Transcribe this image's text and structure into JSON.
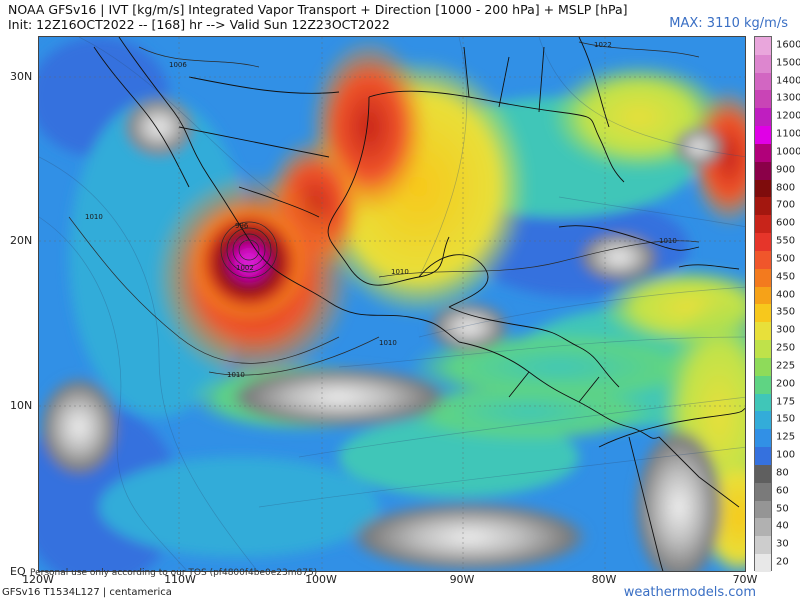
{
  "header": {
    "title": "NOAA GFSv16 | IVT [kg/m/s] Integrated Vapor Transport + Direction [1000 - 200 hPa] + MSLP [hPa]",
    "init": "Init: 12Z16OCT2022 -- [168] hr --> Valid Sun 12Z23OCT2022",
    "max": "MAX: 3110 kg/m/s"
  },
  "axes": {
    "lat_labels": [
      "30N",
      "20N",
      "10N",
      "EQ"
    ],
    "lon_labels": [
      "120W",
      "110W",
      "100W",
      "90W",
      "80W",
      "70W"
    ]
  },
  "isobars": [
    "1006",
    "1022",
    "1010",
    "1010",
    "1010",
    "1010",
    "1002",
    "1010",
    "996"
  ],
  "colorbar": {
    "levels": [
      "1600",
      "1500",
      "1400",
      "1300",
      "1200",
      "1100",
      "1000",
      "900",
      "800",
      "700",
      "600",
      "550",
      "500",
      "450",
      "400",
      "350",
      "300",
      "250",
      "225",
      "200",
      "175",
      "150",
      "125",
      "100",
      "80",
      "60",
      "50",
      "40",
      "30",
      "20"
    ],
    "colors": [
      "#e9a6dc",
      "#dd86cf",
      "#d266c2",
      "#c944b6",
      "#bf1ec0",
      "#e000e6",
      "#b1007a",
      "#8a0048",
      "#7e0c0c",
      "#a3170f",
      "#c8241a",
      "#e6352a",
      "#f0562b",
      "#f37a1e",
      "#f6a218",
      "#f7c81c",
      "#e8e03a",
      "#bfe24a",
      "#8edb5a",
      "#5fd483",
      "#40c6b8",
      "#33acd9",
      "#3190e6",
      "#3571de",
      "#5f5f5f",
      "#7a7a7a",
      "#959595",
      "#b1b1b1",
      "#cdcdcd",
      "#e8e8e8"
    ]
  },
  "footer": {
    "model": "GFSv16 T1534L127 | centamerica",
    "note": "Personal use only according to our TOS (pf4800f4be0e23m875)",
    "site": "weathermodels.com"
  }
}
